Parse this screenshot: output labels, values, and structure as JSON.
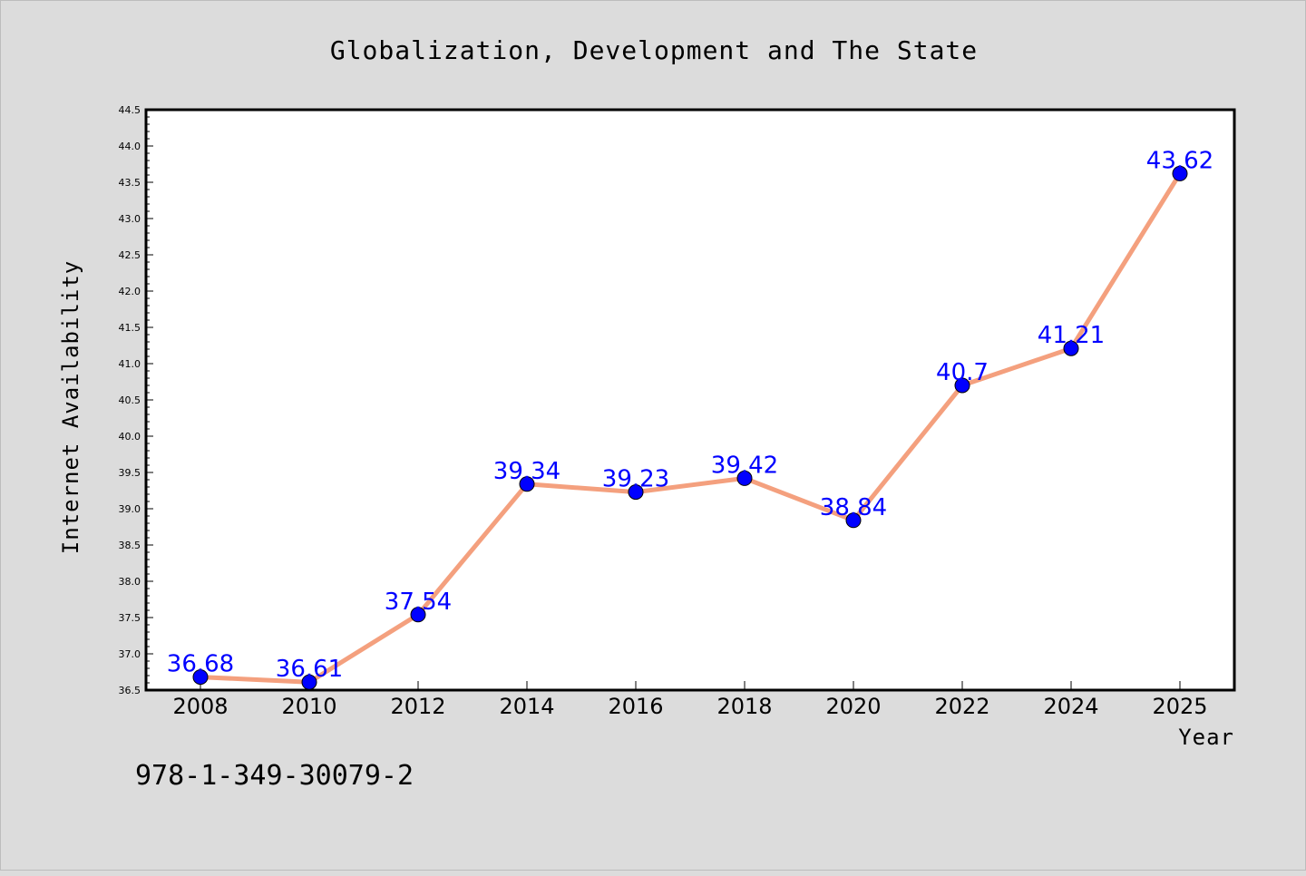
{
  "chart_data": {
    "type": "line",
    "title": "Globalization, Development and The State",
    "xlabel": "Year",
    "ylabel": "Internet Availability",
    "categories": [
      "2008",
      "2010",
      "2012",
      "2014",
      "2016",
      "2018",
      "2020",
      "2022",
      "2024",
      "2025"
    ],
    "values": [
      36.68,
      36.61,
      37.54,
      39.34,
      39.23,
      39.42,
      38.84,
      40.7,
      41.21,
      43.62
    ],
    "data_labels": [
      "36.68",
      "36.61",
      "37.54",
      "39.34",
      "39.23",
      "39.42",
      "38.84",
      "40.7",
      "41.21",
      "43.62"
    ],
    "ylim": [
      36.5,
      44.5
    ],
    "yticks": [
      "36.5",
      "37.0",
      "37.5",
      "38.0",
      "38.5",
      "39.0",
      "39.5",
      "40.0",
      "40.5",
      "41.0",
      "41.5",
      "42.0",
      "42.5",
      "43.0",
      "43.5",
      "44.0",
      "44.5"
    ],
    "grid": false,
    "line_color": "#f4a07e",
    "marker_color": "#0000ff",
    "label_color": "#0000ff",
    "background_color": "#dcdcdc",
    "plot_background_color": "#ffffff"
  },
  "annotation": {
    "isbn": "978-1-349-30079-2"
  }
}
